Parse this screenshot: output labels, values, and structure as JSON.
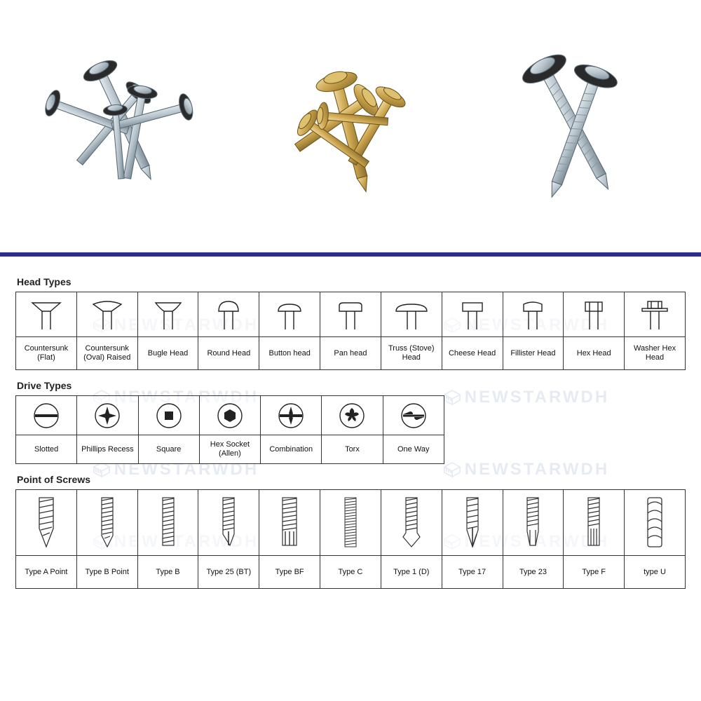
{
  "colors": {
    "divider": "#2e2e8f",
    "border": "#333333",
    "text": "#111111",
    "watermark": "#4a6fa5",
    "background": "#ffffff",
    "screw_silver": "#b8c4cc",
    "screw_silver_dark": "#7a8a94",
    "washer_dark": "#2a2a2a",
    "screw_gold": "#c9a24a",
    "screw_gold_dark": "#8a6d2e",
    "icon_stroke": "#222222"
  },
  "watermark_text": "NEWSTARWDH",
  "sections": {
    "head": {
      "title": "Head Types",
      "items": [
        {
          "label": "Countersunk (Flat)",
          "icon": "head-countersunk"
        },
        {
          "label": "Countersunk (Oval) Raised",
          "icon": "head-countersunk-oval"
        },
        {
          "label": "Bugle Head",
          "icon": "head-bugle"
        },
        {
          "label": "Round Head",
          "icon": "head-round"
        },
        {
          "label": "Button head",
          "icon": "head-button"
        },
        {
          "label": "Pan head",
          "icon": "head-pan"
        },
        {
          "label": "Truss (Stove) Head",
          "icon": "head-truss"
        },
        {
          "label": "Cheese Head",
          "icon": "head-cheese"
        },
        {
          "label": "Fillister Head",
          "icon": "head-fillister"
        },
        {
          "label": "Hex Head",
          "icon": "head-hex"
        },
        {
          "label": "Washer Hex Head",
          "icon": "head-washer-hex"
        }
      ]
    },
    "drive": {
      "title": "Drive Types",
      "items": [
        {
          "label": "Slotted",
          "icon": "drive-slotted"
        },
        {
          "label": "Phillips Recess",
          "icon": "drive-phillips"
        },
        {
          "label": "Square",
          "icon": "drive-square"
        },
        {
          "label": "Hex Socket (Allen)",
          "icon": "drive-hex"
        },
        {
          "label": "Combination",
          "icon": "drive-combination"
        },
        {
          "label": "Torx",
          "icon": "drive-torx"
        },
        {
          "label": "One Way",
          "icon": "drive-oneway"
        }
      ]
    },
    "point": {
      "title": "Point of Screws",
      "items": [
        {
          "label": "Type A Point",
          "icon": "point-a"
        },
        {
          "label": "Type B Point",
          "icon": "point-b"
        },
        {
          "label": "Type B",
          "icon": "point-b2"
        },
        {
          "label": "Type 25 (BT)",
          "icon": "point-25"
        },
        {
          "label": "Type BF",
          "icon": "point-bf"
        },
        {
          "label": "Type C",
          "icon": "point-c"
        },
        {
          "label": "Type 1 (D)",
          "icon": "point-1d"
        },
        {
          "label": "Type 17",
          "icon": "point-17"
        },
        {
          "label": "Type 23",
          "icon": "point-23"
        },
        {
          "label": "Type F",
          "icon": "point-f"
        },
        {
          "label": "type U",
          "icon": "point-u"
        }
      ]
    }
  }
}
